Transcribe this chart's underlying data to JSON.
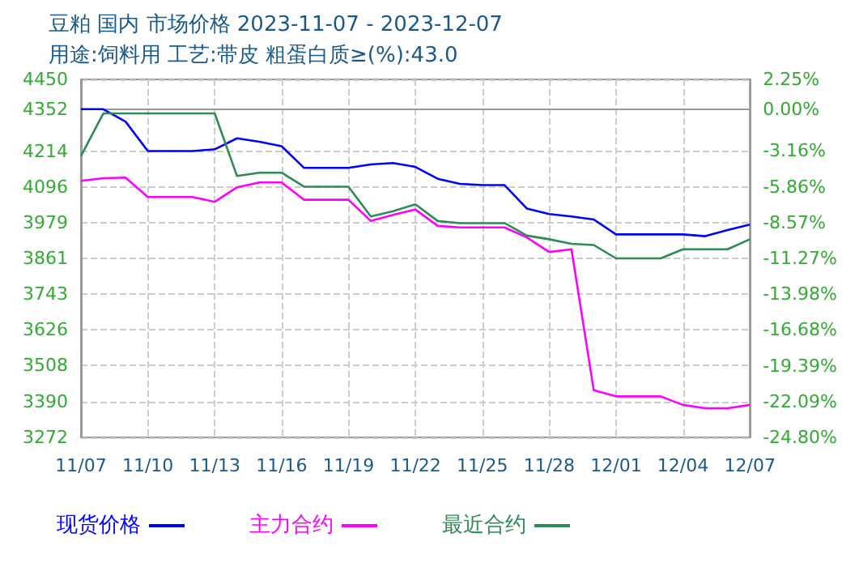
{
  "chart_data": {
    "type": "line",
    "title": "豆粕 国内 市场价格 2023-11-07 - 2023-12-07",
    "subtitle": "用途:饲料用 工艺:带皮 粗蛋白质≥(%):43.0",
    "categories": [
      "11/07",
      null,
      null,
      "11/10",
      null,
      null,
      "11/13",
      null,
      null,
      "11/16",
      null,
      null,
      "11/19",
      null,
      null,
      "11/22",
      null,
      null,
      "11/25",
      null,
      null,
      "11/28",
      null,
      null,
      "12/01",
      null,
      null,
      "12/04",
      null,
      null,
      "12/07"
    ],
    "series": [
      {
        "name": "现货价格",
        "color": "#0000ff",
        "values": [
          4352,
          4352,
          4311,
          4214,
          4214,
          4214,
          4220,
          4256,
          4245,
          4230,
          4159,
          4159,
          4159,
          4170,
          4175,
          4162,
          4123,
          4106,
          4102,
          4102,
          4025,
          4007,
          3999,
          3989,
          3940,
          3940,
          3940,
          3940,
          3934,
          3954,
          3972
        ]
      },
      {
        "name": "主力合约",
        "color": "#ff00ff",
        "values": [
          4116,
          4125,
          4127,
          4063,
          4063,
          4063,
          4047,
          4095,
          4111,
          4111,
          4054,
          4054,
          4054,
          3984,
          4004,
          4022,
          3968,
          3963,
          3963,
          3963,
          3930,
          3882,
          3891,
          3427,
          3407,
          3407,
          3407,
          3379,
          3368,
          3368,
          3379
        ]
      },
      {
        "name": "最近合约",
        "color": "#2e8b57",
        "values": [
          4198,
          4338,
          4338,
          4338,
          4338,
          4338,
          4338,
          4132,
          4143,
          4143,
          4097,
          4097,
          4097,
          3999,
          4016,
          4039,
          3984,
          3977,
          3977,
          3977,
          3936,
          3924,
          3909,
          3905,
          3861,
          3861,
          3861,
          3891,
          3891,
          3891,
          3924
        ]
      }
    ],
    "ylim": [
      3272,
      4450
    ],
    "yticks": [
      3272,
      3390,
      3508,
      3626,
      3743,
      3861,
      3979,
      4096,
      4214,
      4352,
      4450
    ],
    "y2lim": [
      -24.8,
      2.25
    ],
    "y2ticks": [
      {
        "value": -24.8,
        "label": "-24.80%"
      },
      {
        "value": -22.09,
        "label": "-22.09%"
      },
      {
        "value": -19.39,
        "label": "-19.39%"
      },
      {
        "value": -16.68,
        "label": "-16.68%"
      },
      {
        "value": -13.98,
        "label": "-13.98%"
      },
      {
        "value": -11.27,
        "label": "-11.27%"
      },
      {
        "value": -8.57,
        "label": "-8.57%"
      },
      {
        "value": -5.86,
        "label": "-5.86%"
      },
      {
        "value": -3.16,
        "label": "-3.16%"
      },
      {
        "value": 0,
        "label": "0.00%"
      },
      {
        "value": 2.25,
        "label": "2.25%"
      }
    ],
    "grid": true,
    "legend": "bottom",
    "marker": "none",
    "line_style": "solid"
  }
}
